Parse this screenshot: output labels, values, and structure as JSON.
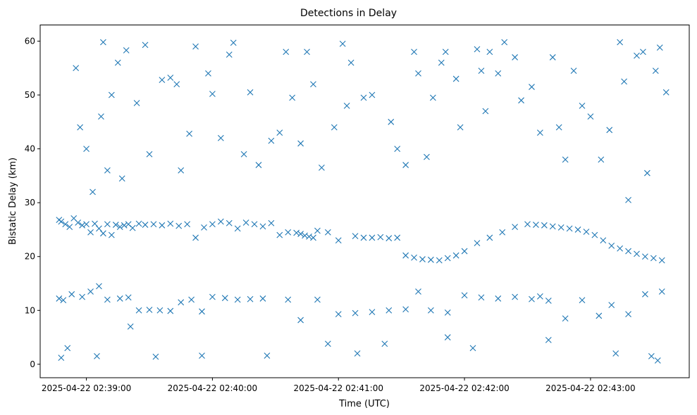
{
  "chart_data": {
    "type": "scatter",
    "title": "Detections in Delay",
    "xlabel": "Time (UTC)",
    "ylabel": "Bistatic Delay (km)",
    "marker": "x",
    "color": "#1f77b4",
    "grid": false,
    "legend": "none",
    "x_unit": "UTC time",
    "xlim": [
      "2025-04-22 02:38:38",
      "2025-04-22 02:43:47"
    ],
    "ylim": [
      -2.5,
      63
    ],
    "x_ticks": [
      "2025-04-22 02:39:00",
      "2025-04-22 02:40:00",
      "2025-04-22 02:41:00",
      "2025-04-22 02:42:00",
      "2025-04-22 02:43:00"
    ],
    "y_ticks": [
      0,
      10,
      20,
      30,
      40,
      50,
      60
    ],
    "series": [
      {
        "values": [
          [
            "2025-04-22 02:38:47",
            26.8
          ],
          [
            "2025-04-22 02:38:48",
            26.5
          ],
          [
            "2025-04-22 02:38:50",
            26.0
          ],
          [
            "2025-04-22 02:38:52",
            25.5
          ],
          [
            "2025-04-22 02:38:54",
            27.1
          ],
          [
            "2025-04-22 02:38:56",
            26.3
          ],
          [
            "2025-04-22 02:38:58",
            25.8
          ],
          [
            "2025-04-22 02:39:00",
            26.0
          ],
          [
            "2025-04-22 02:39:02",
            24.5
          ],
          [
            "2025-04-22 02:39:04",
            26.1
          ],
          [
            "2025-04-22 02:39:06",
            25.2
          ],
          [
            "2025-04-22 02:39:08",
            24.3
          ],
          [
            "2025-04-22 02:39:10",
            26.0
          ],
          [
            "2025-04-22 02:39:12",
            24.0
          ],
          [
            "2025-04-22 02:39:14",
            25.9
          ],
          [
            "2025-04-22 02:39:16",
            25.5
          ],
          [
            "2025-04-22 02:39:18",
            25.8
          ],
          [
            "2025-04-22 02:39:20",
            26.0
          ],
          [
            "2025-04-22 02:39:22",
            25.3
          ],
          [
            "2025-04-22 02:39:25",
            26.1
          ],
          [
            "2025-04-22 02:39:28",
            25.9
          ],
          [
            "2025-04-22 02:39:32",
            26.0
          ],
          [
            "2025-04-22 02:39:36",
            25.8
          ],
          [
            "2025-04-22 02:39:40",
            26.1
          ],
          [
            "2025-04-22 02:39:44",
            25.7
          ],
          [
            "2025-04-22 02:39:48",
            26.0
          ],
          [
            "2025-04-22 02:39:52",
            23.5
          ],
          [
            "2025-04-22 02:39:56",
            25.4
          ],
          [
            "2025-04-22 02:40:00",
            26.0
          ],
          [
            "2025-04-22 02:40:04",
            26.5
          ],
          [
            "2025-04-22 02:40:08",
            26.2
          ],
          [
            "2025-04-22 02:40:12",
            25.2
          ],
          [
            "2025-04-22 02:40:16",
            26.3
          ],
          [
            "2025-04-22 02:40:20",
            26.0
          ],
          [
            "2025-04-22 02:40:24",
            25.6
          ],
          [
            "2025-04-22 02:40:28",
            26.2
          ],
          [
            "2025-04-22 02:40:32",
            24.0
          ],
          [
            "2025-04-22 02:40:36",
            24.5
          ],
          [
            "2025-04-22 02:40:40",
            24.4
          ],
          [
            "2025-04-22 02:40:42",
            24.2
          ],
          [
            "2025-04-22 02:40:44",
            23.9
          ],
          [
            "2025-04-22 02:40:46",
            23.7
          ],
          [
            "2025-04-22 02:40:48",
            23.5
          ],
          [
            "2025-04-22 02:40:50",
            24.8
          ],
          [
            "2025-04-22 02:40:55",
            24.5
          ],
          [
            "2025-04-22 02:41:00",
            23.0
          ],
          [
            "2025-04-22 02:41:08",
            23.8
          ],
          [
            "2025-04-22 02:41:12",
            23.5
          ],
          [
            "2025-04-22 02:41:16",
            23.5
          ],
          [
            "2025-04-22 02:41:20",
            23.6
          ],
          [
            "2025-04-22 02:41:24",
            23.4
          ],
          [
            "2025-04-22 02:41:28",
            23.5
          ],
          [
            "2025-04-22 02:41:32",
            20.2
          ],
          [
            "2025-04-22 02:41:36",
            19.8
          ],
          [
            "2025-04-22 02:41:40",
            19.5
          ],
          [
            "2025-04-22 02:41:44",
            19.4
          ],
          [
            "2025-04-22 02:41:48",
            19.3
          ],
          [
            "2025-04-22 02:41:52",
            19.7
          ],
          [
            "2025-04-22 02:41:56",
            20.2
          ],
          [
            "2025-04-22 02:42:00",
            21.0
          ],
          [
            "2025-04-22 02:42:06",
            22.5
          ],
          [
            "2025-04-22 02:42:12",
            23.5
          ],
          [
            "2025-04-22 02:42:18",
            24.5
          ],
          [
            "2025-04-22 02:42:24",
            25.5
          ],
          [
            "2025-04-22 02:42:30",
            26.0
          ],
          [
            "2025-04-22 02:42:34",
            25.9
          ],
          [
            "2025-04-22 02:42:38",
            25.8
          ],
          [
            "2025-04-22 02:42:42",
            25.6
          ],
          [
            "2025-04-22 02:42:46",
            25.4
          ],
          [
            "2025-04-22 02:42:50",
            25.2
          ],
          [
            "2025-04-22 02:42:54",
            25.0
          ],
          [
            "2025-04-22 02:42:58",
            24.6
          ],
          [
            "2025-04-22 02:43:02",
            24.0
          ],
          [
            "2025-04-22 02:43:06",
            23.0
          ],
          [
            "2025-04-22 02:43:10",
            22.0
          ],
          [
            "2025-04-22 02:43:14",
            21.5
          ],
          [
            "2025-04-22 02:43:18",
            21.0
          ],
          [
            "2025-04-22 02:43:22",
            20.5
          ],
          [
            "2025-04-22 02:43:26",
            20.0
          ],
          [
            "2025-04-22 02:43:30",
            19.7
          ],
          [
            "2025-04-22 02:43:34",
            19.3
          ],
          [
            "2025-04-22 02:38:47",
            12.2
          ],
          [
            "2025-04-22 02:38:49",
            11.9
          ],
          [
            "2025-04-22 02:38:53",
            13.0
          ],
          [
            "2025-04-22 02:38:58",
            12.5
          ],
          [
            "2025-04-22 02:39:02",
            13.5
          ],
          [
            "2025-04-22 02:39:06",
            14.5
          ],
          [
            "2025-04-22 02:39:10",
            12.0
          ],
          [
            "2025-04-22 02:39:16",
            12.2
          ],
          [
            "2025-04-22 02:39:20",
            12.4
          ],
          [
            "2025-04-22 02:39:25",
            10.0
          ],
          [
            "2025-04-22 02:39:30",
            10.1
          ],
          [
            "2025-04-22 02:39:35",
            10.0
          ],
          [
            "2025-04-22 02:39:40",
            9.9
          ],
          [
            "2025-04-22 02:39:45",
            11.5
          ],
          [
            "2025-04-22 02:39:50",
            12.0
          ],
          [
            "2025-04-22 02:39:55",
            9.8
          ],
          [
            "2025-04-22 02:40:00",
            12.5
          ],
          [
            "2025-04-22 02:40:06",
            12.3
          ],
          [
            "2025-04-22 02:40:12",
            12.0
          ],
          [
            "2025-04-22 02:40:18",
            12.1
          ],
          [
            "2025-04-22 02:40:24",
            12.2
          ],
          [
            "2025-04-22 02:40:36",
            12.0
          ],
          [
            "2025-04-22 02:40:42",
            8.2
          ],
          [
            "2025-04-22 02:40:50",
            12.0
          ],
          [
            "2025-04-22 02:41:00",
            9.3
          ],
          [
            "2025-04-22 02:41:08",
            9.5
          ],
          [
            "2025-04-22 02:41:16",
            9.7
          ],
          [
            "2025-04-22 02:41:24",
            10.0
          ],
          [
            "2025-04-22 02:41:32",
            10.2
          ],
          [
            "2025-04-22 02:41:38",
            13.5
          ],
          [
            "2025-04-22 02:41:44",
            10.0
          ],
          [
            "2025-04-22 02:41:52",
            9.6
          ],
          [
            "2025-04-22 02:42:00",
            12.8
          ],
          [
            "2025-04-22 02:42:08",
            12.4
          ],
          [
            "2025-04-22 02:42:16",
            12.2
          ],
          [
            "2025-04-22 02:42:24",
            12.5
          ],
          [
            "2025-04-22 02:42:32",
            12.1
          ],
          [
            "2025-04-22 02:42:36",
            12.6
          ],
          [
            "2025-04-22 02:42:40",
            11.8
          ],
          [
            "2025-04-22 02:42:48",
            8.5
          ],
          [
            "2025-04-22 02:42:56",
            11.9
          ],
          [
            "2025-04-22 02:43:04",
            9.0
          ],
          [
            "2025-04-22 02:43:10",
            11.0
          ],
          [
            "2025-04-22 02:43:18",
            9.3
          ],
          [
            "2025-04-22 02:43:26",
            13.0
          ],
          [
            "2025-04-22 02:43:34",
            13.5
          ],
          [
            "2025-04-22 02:38:48",
            1.2
          ],
          [
            "2025-04-22 02:38:51",
            3.0
          ],
          [
            "2025-04-22 02:38:55",
            55.0
          ],
          [
            "2025-04-22 02:38:57",
            44.0
          ],
          [
            "2025-04-22 02:39:00",
            40.0
          ],
          [
            "2025-04-22 02:39:03",
            32.0
          ],
          [
            "2025-04-22 02:39:05",
            1.5
          ],
          [
            "2025-04-22 02:39:07",
            46.0
          ],
          [
            "2025-04-22 02:39:08",
            59.8
          ],
          [
            "2025-04-22 02:39:10",
            36.0
          ],
          [
            "2025-04-22 02:39:12",
            50.0
          ],
          [
            "2025-04-22 02:39:15",
            56.0
          ],
          [
            "2025-04-22 02:39:17",
            34.5
          ],
          [
            "2025-04-22 02:39:19",
            58.3
          ],
          [
            "2025-04-22 02:39:21",
            7.0
          ],
          [
            "2025-04-22 02:39:24",
            48.5
          ],
          [
            "2025-04-22 02:39:28",
            59.3
          ],
          [
            "2025-04-22 02:39:30",
            39.0
          ],
          [
            "2025-04-22 02:39:33",
            1.4
          ],
          [
            "2025-04-22 02:39:36",
            52.8
          ],
          [
            "2025-04-22 02:39:40",
            53.2
          ],
          [
            "2025-04-22 02:39:43",
            52.0
          ],
          [
            "2025-04-22 02:39:45",
            36.0
          ],
          [
            "2025-04-22 02:39:49",
            42.8
          ],
          [
            "2025-04-22 02:39:52",
            59.0
          ],
          [
            "2025-04-22 02:39:55",
            1.6
          ],
          [
            "2025-04-22 02:39:58",
            54.0
          ],
          [
            "2025-04-22 02:40:00",
            50.2
          ],
          [
            "2025-04-22 02:40:04",
            42.0
          ],
          [
            "2025-04-22 02:40:08",
            57.5
          ],
          [
            "2025-04-22 02:40:10",
            59.7
          ],
          [
            "2025-04-22 02:40:15",
            39.0
          ],
          [
            "2025-04-22 02:40:18",
            50.5
          ],
          [
            "2025-04-22 02:40:22",
            37.0
          ],
          [
            "2025-04-22 02:40:26",
            1.6
          ],
          [
            "2025-04-22 02:40:28",
            41.5
          ],
          [
            "2025-04-22 02:40:32",
            43.0
          ],
          [
            "2025-04-22 02:40:35",
            58.0
          ],
          [
            "2025-04-22 02:40:38",
            49.5
          ],
          [
            "2025-04-22 02:40:42",
            41.0
          ],
          [
            "2025-04-22 02:40:45",
            58.0
          ],
          [
            "2025-04-22 02:40:48",
            52.0
          ],
          [
            "2025-04-22 02:40:52",
            36.5
          ],
          [
            "2025-04-22 02:40:55",
            3.8
          ],
          [
            "2025-04-22 02:40:58",
            44.0
          ],
          [
            "2025-04-22 02:41:02",
            59.5
          ],
          [
            "2025-04-22 02:41:04",
            48.0
          ],
          [
            "2025-04-22 02:41:06",
            56.0
          ],
          [
            "2025-04-22 02:41:09",
            2.0
          ],
          [
            "2025-04-22 02:41:12",
            49.5
          ],
          [
            "2025-04-22 02:41:16",
            50.0
          ],
          [
            "2025-04-22 02:41:22",
            3.8
          ],
          [
            "2025-04-22 02:41:25",
            45.0
          ],
          [
            "2025-04-22 02:41:28",
            40.0
          ],
          [
            "2025-04-22 02:41:32",
            37.0
          ],
          [
            "2025-04-22 02:41:36",
            58.0
          ],
          [
            "2025-04-22 02:41:38",
            54.0
          ],
          [
            "2025-04-22 02:41:42",
            38.5
          ],
          [
            "2025-04-22 02:41:45",
            49.5
          ],
          [
            "2025-04-22 02:41:49",
            56.0
          ],
          [
            "2025-04-22 02:41:51",
            58.0
          ],
          [
            "2025-04-22 02:41:52",
            5.0
          ],
          [
            "2025-04-22 02:41:56",
            53.0
          ],
          [
            "2025-04-22 02:41:58",
            44.0
          ],
          [
            "2025-04-22 02:42:04",
            3.0
          ],
          [
            "2025-04-22 02:42:06",
            58.5
          ],
          [
            "2025-04-22 02:42:08",
            54.5
          ],
          [
            "2025-04-22 02:42:10",
            47.0
          ],
          [
            "2025-04-22 02:42:12",
            58.0
          ],
          [
            "2025-04-22 02:42:16",
            54.0
          ],
          [
            "2025-04-22 02:42:19",
            59.8
          ],
          [
            "2025-04-22 02:42:24",
            57.0
          ],
          [
            "2025-04-22 02:42:27",
            49.0
          ],
          [
            "2025-04-22 02:42:32",
            51.5
          ],
          [
            "2025-04-22 02:42:36",
            43.0
          ],
          [
            "2025-04-22 02:42:40",
            4.5
          ],
          [
            "2025-04-22 02:42:42",
            57.0
          ],
          [
            "2025-04-22 02:42:45",
            44.0
          ],
          [
            "2025-04-22 02:42:48",
            38.0
          ],
          [
            "2025-04-22 02:42:52",
            54.5
          ],
          [
            "2025-04-22 02:42:56",
            48.0
          ],
          [
            "2025-04-22 02:43:00",
            46.0
          ],
          [
            "2025-04-22 02:43:05",
            38.0
          ],
          [
            "2025-04-22 02:43:09",
            43.5
          ],
          [
            "2025-04-22 02:43:12",
            2.0
          ],
          [
            "2025-04-22 02:43:14",
            59.8
          ],
          [
            "2025-04-22 02:43:16",
            52.5
          ],
          [
            "2025-04-22 02:43:18",
            30.5
          ],
          [
            "2025-04-22 02:43:22",
            57.3
          ],
          [
            "2025-04-22 02:43:25",
            58.0
          ],
          [
            "2025-04-22 02:43:27",
            35.5
          ],
          [
            "2025-04-22 02:43:29",
            1.5
          ],
          [
            "2025-04-22 02:43:31",
            54.5
          ],
          [
            "2025-04-22 02:43:32",
            0.7
          ],
          [
            "2025-04-22 02:43:33",
            58.8
          ],
          [
            "2025-04-22 02:43:36",
            50.5
          ]
        ]
      }
    ]
  }
}
